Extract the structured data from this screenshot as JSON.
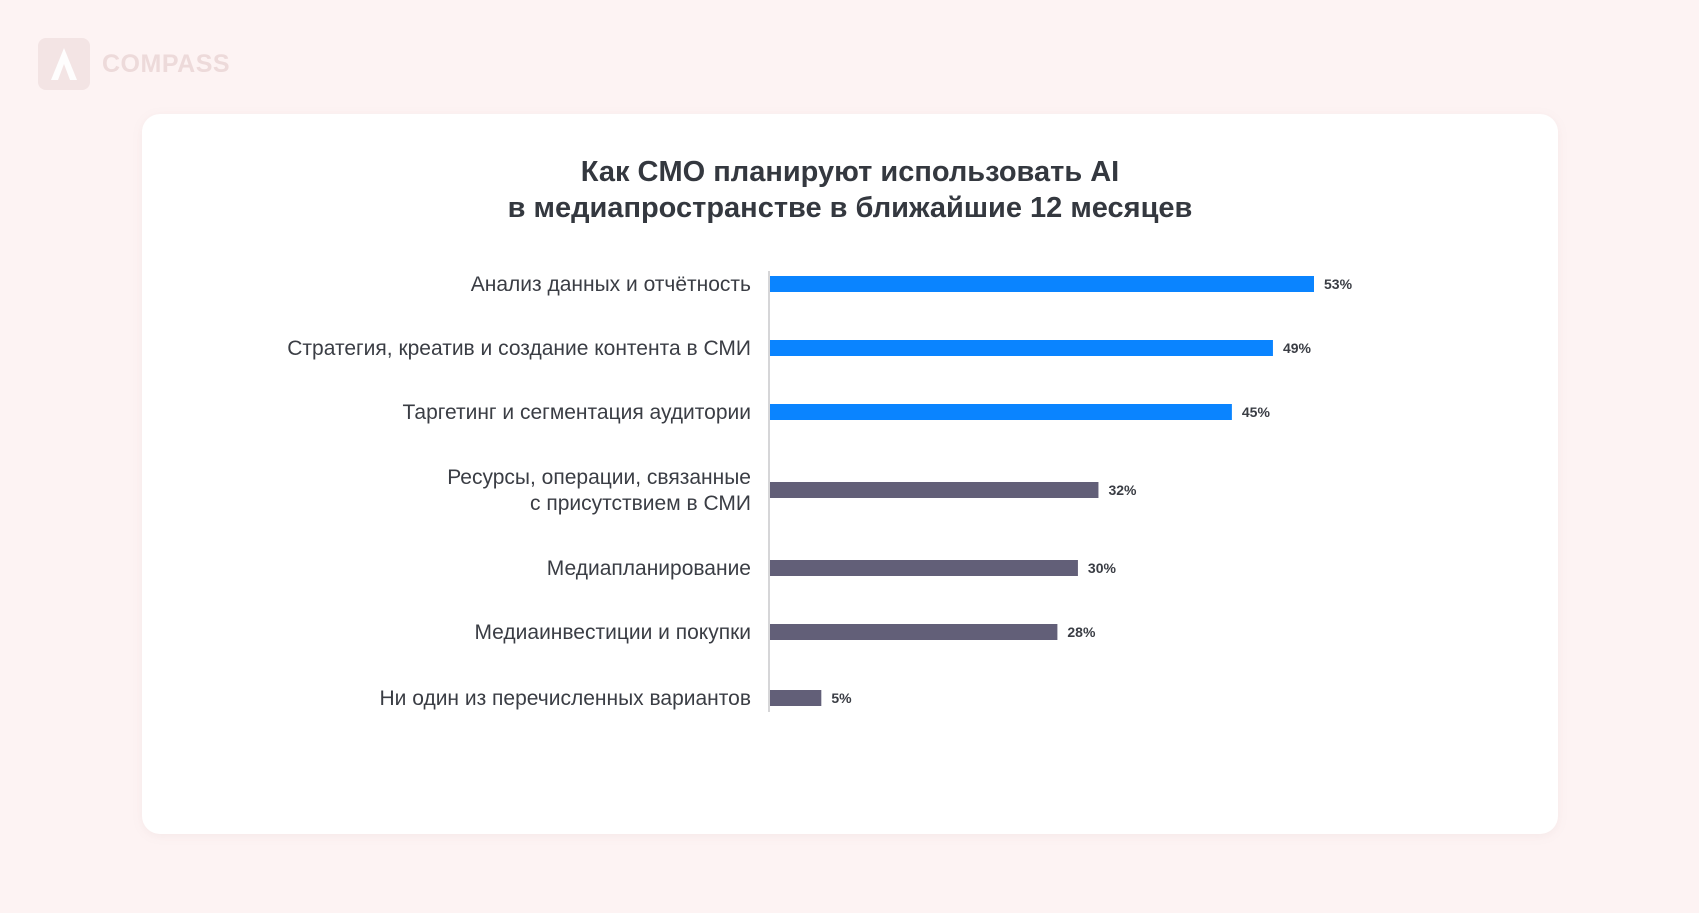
{
  "brand": {
    "name": "COMPASS"
  },
  "chart_data": {
    "type": "bar",
    "orientation": "horizontal",
    "title": [
      "Как CMO планируют использовать AI",
      "в медиапространстве в ближайшие 12 месяцев"
    ],
    "categories": [
      [
        "Анализ данных и отчётность"
      ],
      [
        "Стратегия, креатив и создание контента в СМИ"
      ],
      [
        "Таргетинг и сегментация аудитории"
      ],
      [
        "Ресурсы, операции, связанные",
        "с присутствием в СМИ"
      ],
      [
        "Медиапланирование"
      ],
      [
        "Медиаинвестиции и покупки"
      ],
      [
        "Ни один из перечисленных вариантов"
      ]
    ],
    "values": [
      53,
      49,
      45,
      32,
      30,
      28,
      5
    ],
    "value_labels": [
      "53%",
      "49%",
      "45%",
      "32%",
      "30%",
      "28%",
      "5%"
    ],
    "bar_colors": [
      "#0a84ff",
      "#0a84ff",
      "#0a84ff",
      "#625f78",
      "#625f78",
      "#625f78",
      "#625f78"
    ],
    "xlabel": "",
    "ylabel": "",
    "xlim": [
      0,
      53
    ],
    "grid": false,
    "legend": "none"
  },
  "colors": {
    "highlight": "#0a84ff",
    "default": "#625f78",
    "axis": "#c8c8cc",
    "text": "#34383f",
    "background": "#fdf3f3",
    "card": "#ffffff"
  }
}
